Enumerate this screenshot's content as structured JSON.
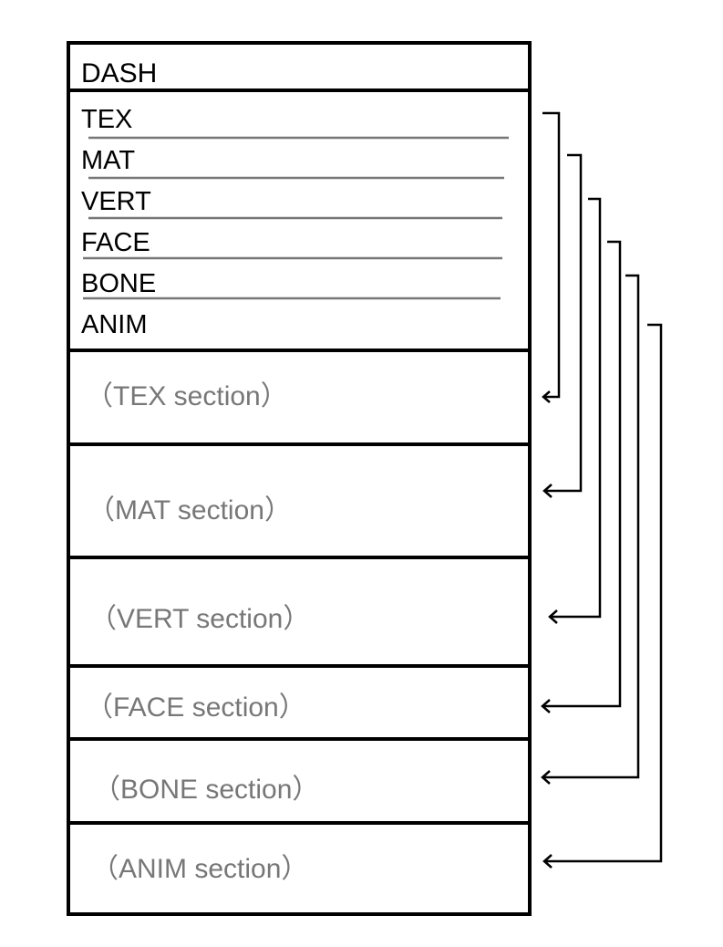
{
  "header": {
    "label": "DASH"
  },
  "index_entries": [
    {
      "label": "TEX"
    },
    {
      "label": "MAT"
    },
    {
      "label": "VERT"
    },
    {
      "label": "FACE"
    },
    {
      "label": "BONE"
    },
    {
      "label": "ANIM"
    }
  ],
  "sections": [
    {
      "label": "（TEX section）"
    },
    {
      "label": "（MAT section）"
    },
    {
      "label": "（VERT section）"
    },
    {
      "label": "（FACE section）"
    },
    {
      "label": "（BONE section）"
    },
    {
      "label": "（ANIM section）"
    }
  ],
  "colors": {
    "outline": "#000000",
    "section_text": "#777777",
    "index_separator": "#777777"
  }
}
